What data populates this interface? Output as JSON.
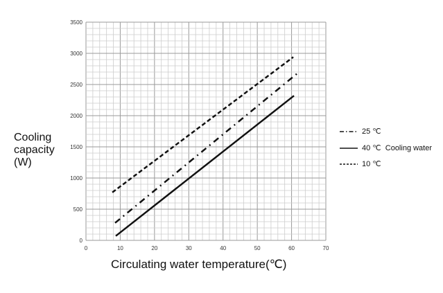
{
  "chart_data": {
    "type": "line",
    "title": "",
    "xlabel": "Circulating water temperature(℃)",
    "ylabel_lines": [
      "Cooling",
      "capacity",
      "(W)"
    ],
    "xlim": [
      0,
      70
    ],
    "ylim": [
      0,
      3500
    ],
    "xticks": [
      0,
      10,
      20,
      30,
      40,
      50,
      60,
      70
    ],
    "yticks": [
      0,
      500,
      1000,
      1500,
      2000,
      2500,
      3000,
      3500
    ],
    "grid": true,
    "legend_position": "right",
    "series": [
      {
        "name": "25 ℃",
        "style": "dashdot",
        "x": [
          8.5,
          61.5
        ],
        "y": [
          280,
          2670
        ]
      },
      {
        "name": "40 ℃  Cooling water",
        "style": "solid",
        "x": [
          8.7,
          60.7
        ],
        "y": [
          70,
          2320
        ]
      },
      {
        "name": "10 ℃",
        "style": "dashed",
        "x": [
          7.7,
          60.5
        ],
        "y": [
          770,
          2940
        ]
      }
    ]
  }
}
